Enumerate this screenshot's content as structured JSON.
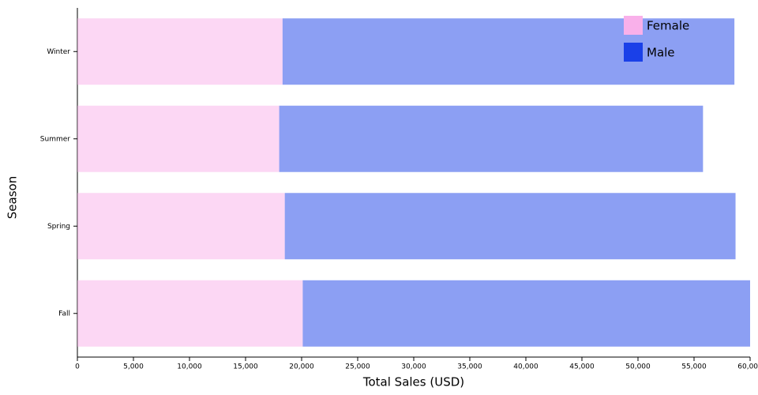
{
  "chart_data": {
    "type": "stacked-barh",
    "x_label": "Total Sales (USD)",
    "y_label": "Season",
    "categories": [
      "Winter",
      "Summer",
      "Spring",
      "Fall"
    ],
    "series": [
      {
        "name": "Female",
        "color": "#f9b0ea",
        "values": [
          18300,
          18000,
          18500,
          20100
        ]
      },
      {
        "name": "Male",
        "color": "#1a40e8",
        "values": [
          40300,
          37800,
          40200,
          39900
        ]
      }
    ],
    "bar_opacity": 0.5,
    "xlim": [
      0,
      60000
    ],
    "xticks": [
      0,
      {
        "value": 5000,
        "label": "5,000"
      },
      {
        "value": 10000,
        "label": "10,000"
      },
      {
        "value": 15000,
        "label": "15,000"
      },
      {
        "value": 20000,
        "label": "20,000"
      },
      {
        "value": 25000,
        "label": "25,000"
      },
      {
        "value": 30000,
        "label": "30,000"
      },
      {
        "value": 35000,
        "label": "35,000"
      },
      {
        "value": 40000,
        "label": "40,000"
      },
      {
        "value": 45000,
        "label": "45,000"
      },
      {
        "value": 50000,
        "label": "50,000"
      },
      {
        "value": 55000,
        "label": "55,000"
      },
      {
        "value": 60000,
        "label": "60,000"
      }
    ],
    "legend": "top-right"
  }
}
